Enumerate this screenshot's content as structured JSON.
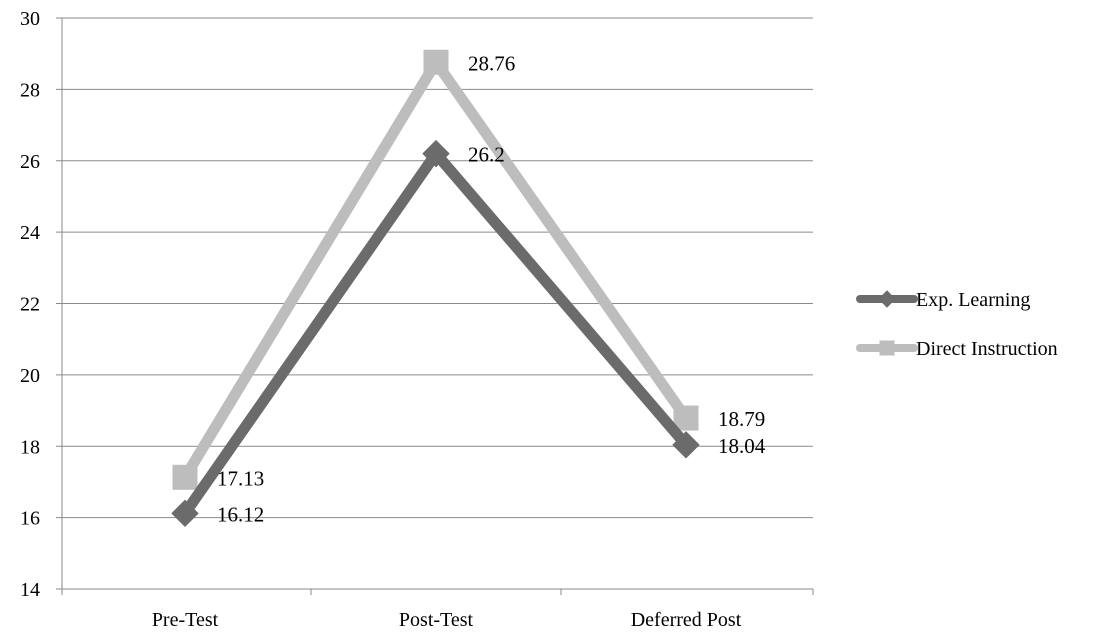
{
  "chart_data": {
    "type": "line",
    "categories": [
      "Pre-Test",
      "Post-Test",
      "Deferred Post"
    ],
    "series": [
      {
        "name": "Exp. Learning",
        "values": [
          16.12,
          26.2,
          18.04
        ],
        "labels": [
          "16.12",
          "26.2",
          "18.04"
        ],
        "color": "#6b6b6b",
        "marker": "diamond"
      },
      {
        "name": "Direct Instruction",
        "values": [
          17.13,
          28.76,
          18.79
        ],
        "labels": [
          "17.13",
          "28.76",
          "18.79"
        ],
        "color": "#bdbdbd",
        "marker": "square"
      }
    ],
    "ylim": [
      14,
      30
    ],
    "yticks": [
      14,
      16,
      18,
      20,
      22,
      24,
      26,
      28,
      30
    ],
    "ytick_labels": [
      "14",
      "16",
      "18",
      "20",
      "22",
      "24",
      "26",
      "28",
      "30"
    ],
    "grid": true,
    "legend": "right",
    "title": "",
    "xlabel": "",
    "ylabel": ""
  }
}
